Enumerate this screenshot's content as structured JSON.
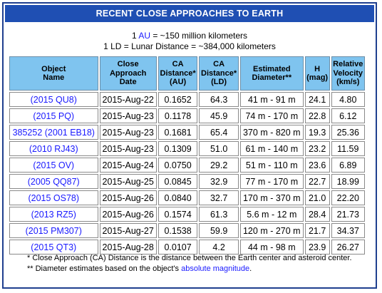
{
  "title": "RECENT CLOSE APPROACHES TO EARTH",
  "definitions": {
    "au_prefix": "1 ",
    "au_link": "AU",
    "au_suffix": " = ~150 million kilometers",
    "ld_text": "1 LD = Lunar Distance = ~384,000 kilometers"
  },
  "table": {
    "headers": {
      "object_l1": "Object",
      "object_l2": "Name",
      "date_l1": "Close",
      "date_l2": "Approach",
      "date_l3": "Date",
      "ca_au_l1": "CA",
      "ca_au_l2": "Distance*",
      "ca_au_l3": "(AU)",
      "ca_ld_l1": "CA",
      "ca_ld_l2": "Distance*",
      "ca_ld_l3": "(LD)",
      "diam_l1": "Estimated",
      "diam_l2": "Diameter**",
      "h_l1": "H",
      "h_l2": "(mag)",
      "vel_l1": "Relative",
      "vel_l2": "Velocity",
      "vel_l3": "(km/s)"
    },
    "rows": [
      {
        "name": "(2015 QU8)",
        "date": "2015-Aug-22",
        "au": "0.1652",
        "ld": "64.3",
        "diameter": "41 m - 91 m",
        "h": "24.1",
        "velocity": "4.80"
      },
      {
        "name": "(2015 PQ)",
        "date": "2015-Aug-23",
        "au": "0.1178",
        "ld": "45.9",
        "diameter": "74 m - 170 m",
        "h": "22.8",
        "velocity": "6.12"
      },
      {
        "name": "385252 (2001 EB18)",
        "date": "2015-Aug-23",
        "au": "0.1681",
        "ld": "65.4",
        "diameter": "370 m - 820 m",
        "h": "19.3",
        "velocity": "25.36"
      },
      {
        "name": "(2010 RJ43)",
        "date": "2015-Aug-23",
        "au": "0.1309",
        "ld": "51.0",
        "diameter": "61 m - 140 m",
        "h": "23.2",
        "velocity": "11.59"
      },
      {
        "name": "(2015 OV)",
        "date": "2015-Aug-24",
        "au": "0.0750",
        "ld": "29.2",
        "diameter": "51 m - 110 m",
        "h": "23.6",
        "velocity": "6.89"
      },
      {
        "name": "(2005 QQ87)",
        "date": "2015-Aug-25",
        "au": "0.0845",
        "ld": "32.9",
        "diameter": "77 m - 170 m",
        "h": "22.7",
        "velocity": "18.99"
      },
      {
        "name": "(2015 OS78)",
        "date": "2015-Aug-26",
        "au": "0.0840",
        "ld": "32.7",
        "diameter": "170 m - 370 m",
        "h": "21.0",
        "velocity": "22.20"
      },
      {
        "name": "(2013 RZ5)",
        "date": "2015-Aug-26",
        "au": "0.1574",
        "ld": "61.3",
        "diameter": "5.6 m - 12 m",
        "h": "28.4",
        "velocity": "21.73"
      },
      {
        "name": "(2015 PM307)",
        "date": "2015-Aug-27",
        "au": "0.1538",
        "ld": "59.9",
        "diameter": "120 m - 270 m",
        "h": "21.7",
        "velocity": "34.37"
      },
      {
        "name": "(2015 QT3)",
        "date": "2015-Aug-28",
        "au": "0.0107",
        "ld": "4.2",
        "diameter": "44 m - 98 m",
        "h": "23.9",
        "velocity": "26.27"
      }
    ]
  },
  "notes": {
    "ca_note": "* Close Approach (CA) Distance is the distance between the Earth center and asteroid center.",
    "diam_prefix": "** Diameter estimates based on the object's ",
    "diam_link": "absolute magnitude",
    "diam_suffix": "."
  }
}
